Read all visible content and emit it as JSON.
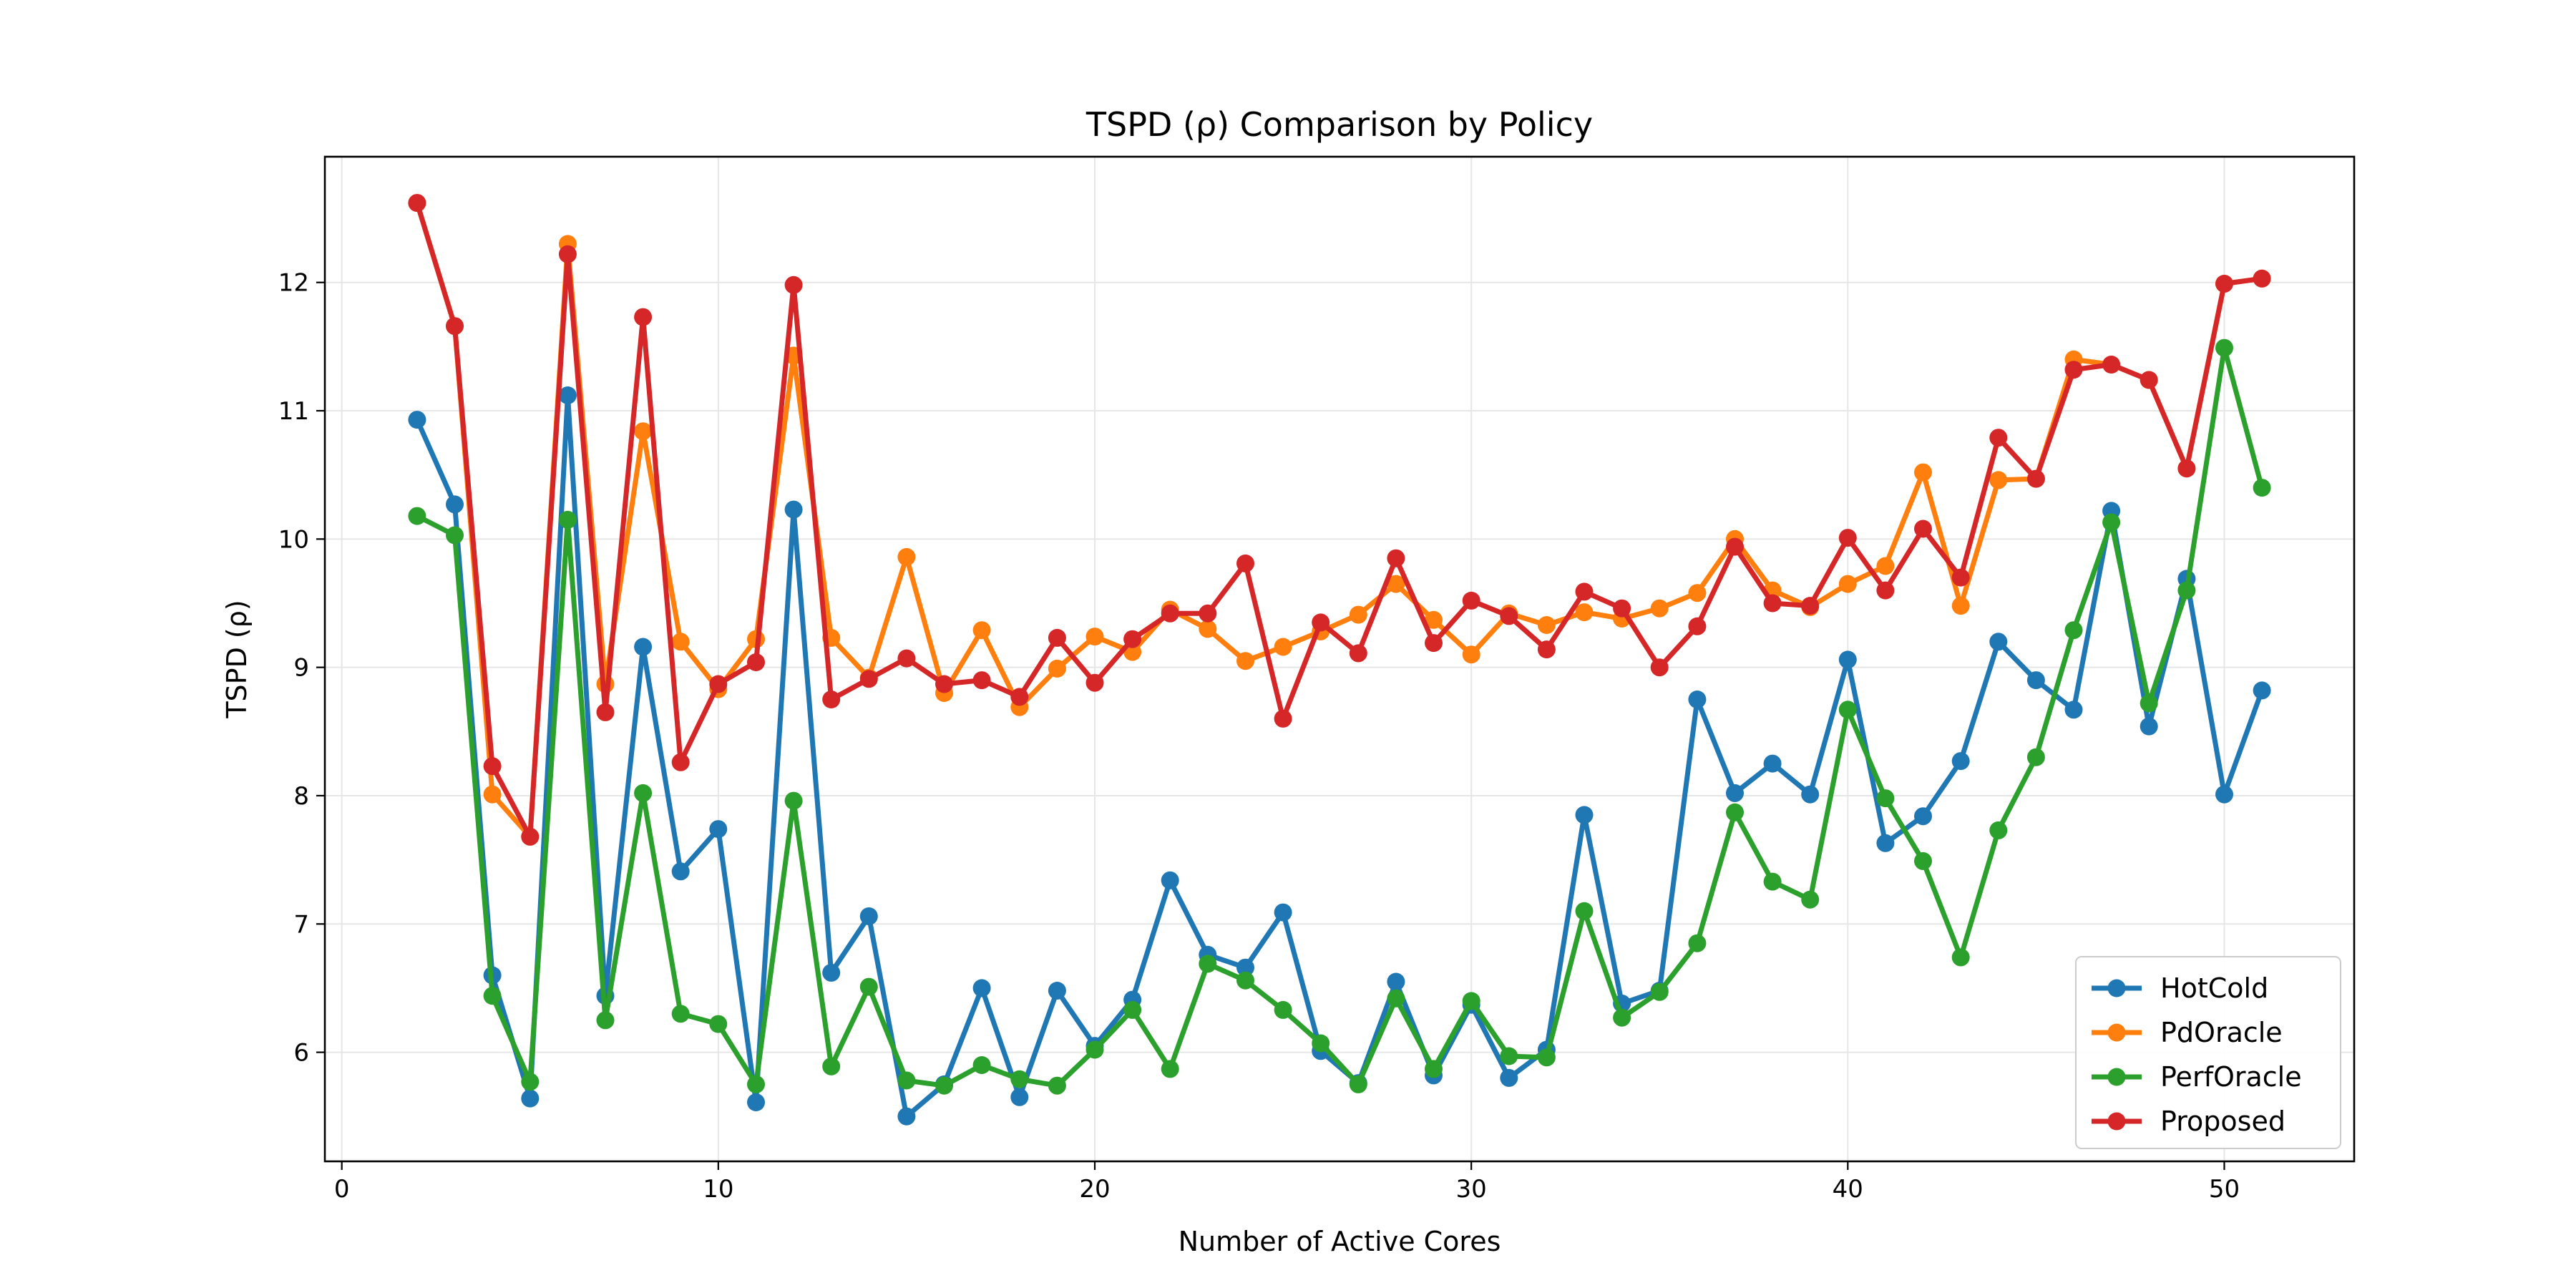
{
  "chart_data": {
    "type": "line",
    "title": "TSPD (ρ) Comparison by Policy",
    "xlabel": "Number of Active Cores",
    "ylabel": "TSPD (ρ)",
    "xlim": [
      -0.45,
      53.45
    ],
    "ylim": [
      5.15,
      12.98
    ],
    "x_ticks": [
      0,
      10,
      20,
      30,
      40,
      50
    ],
    "y_ticks": [
      6,
      7,
      8,
      9,
      10,
      11,
      12
    ],
    "grid": true,
    "legend_position": "lower right",
    "x": [
      2,
      3,
      4,
      5,
      6,
      7,
      8,
      9,
      10,
      11,
      12,
      13,
      14,
      15,
      16,
      17,
      18,
      19,
      20,
      21,
      22,
      23,
      24,
      25,
      26,
      27,
      28,
      29,
      30,
      31,
      32,
      33,
      34,
      35,
      36,
      37,
      38,
      39,
      40,
      41,
      42,
      43,
      44,
      45,
      46,
      47,
      48,
      49,
      50,
      51
    ],
    "series": [
      {
        "name": "HotCold",
        "color": "#1f77b4",
        "values": [
          10.93,
          10.27,
          6.6,
          5.64,
          11.12,
          6.44,
          9.16,
          7.41,
          7.74,
          5.61,
          10.23,
          6.62,
          7.06,
          5.5,
          5.75,
          6.5,
          5.65,
          6.48,
          6.05,
          6.41,
          7.34,
          6.76,
          6.66,
          7.09,
          6.01,
          5.76,
          6.55,
          5.82,
          6.37,
          5.8,
          6.02,
          7.85,
          6.38,
          6.48,
          8.75,
          8.02,
          8.25,
          8.01,
          9.06,
          7.63,
          7.84,
          8.27,
          9.2,
          8.9,
          8.67,
          10.22,
          8.54,
          9.69,
          8.01,
          8.82
        ]
      },
      {
        "name": "PdOracle",
        "color": "#ff7f0e",
        "values": [
          12.62,
          11.66,
          8.01,
          7.68,
          12.3,
          8.87,
          10.84,
          9.2,
          8.83,
          9.22,
          11.43,
          9.23,
          8.92,
          9.86,
          8.8,
          9.29,
          8.69,
          8.99,
          9.24,
          9.12,
          9.45,
          9.3,
          9.05,
          9.16,
          9.28,
          9.41,
          9.65,
          9.37,
          9.1,
          9.42,
          9.33,
          9.43,
          9.38,
          9.46,
          9.58,
          10.0,
          9.6,
          9.47,
          9.65,
          9.79,
          10.52,
          9.48,
          10.46,
          10.47,
          11.4,
          11.36,
          11.24,
          10.55,
          11.99,
          12.03
        ]
      },
      {
        "name": "PerfOracle",
        "color": "#2ca02c",
        "values": [
          10.18,
          10.03,
          6.44,
          5.77,
          10.15,
          6.25,
          8.02,
          6.3,
          6.22,
          5.75,
          7.96,
          5.89,
          6.51,
          5.78,
          5.74,
          5.9,
          5.79,
          5.74,
          6.02,
          6.33,
          5.87,
          6.69,
          6.56,
          6.33,
          6.07,
          5.75,
          6.42,
          5.87,
          6.4,
          5.97,
          5.96,
          7.1,
          6.27,
          6.47,
          6.85,
          7.87,
          7.33,
          7.19,
          8.67,
          7.98,
          7.49,
          6.74,
          7.73,
          8.3,
          9.29,
          10.13,
          8.72,
          9.6,
          11.49,
          10.4
        ]
      },
      {
        "name": "Proposed",
        "color": "#d62728",
        "values": [
          12.62,
          11.66,
          8.23,
          7.68,
          12.22,
          8.65,
          11.73,
          8.26,
          8.87,
          9.04,
          11.98,
          8.75,
          8.91,
          9.07,
          8.87,
          8.9,
          8.77,
          9.23,
          8.88,
          9.22,
          9.42,
          9.42,
          9.81,
          8.6,
          9.35,
          9.11,
          9.85,
          9.19,
          9.52,
          9.4,
          9.14,
          9.59,
          9.46,
          9.0,
          9.32,
          9.94,
          9.5,
          9.48,
          10.01,
          9.6,
          10.08,
          9.7,
          10.79,
          10.47,
          11.32,
          11.36,
          11.24,
          10.55,
          11.99,
          12.03
        ]
      }
    ]
  }
}
